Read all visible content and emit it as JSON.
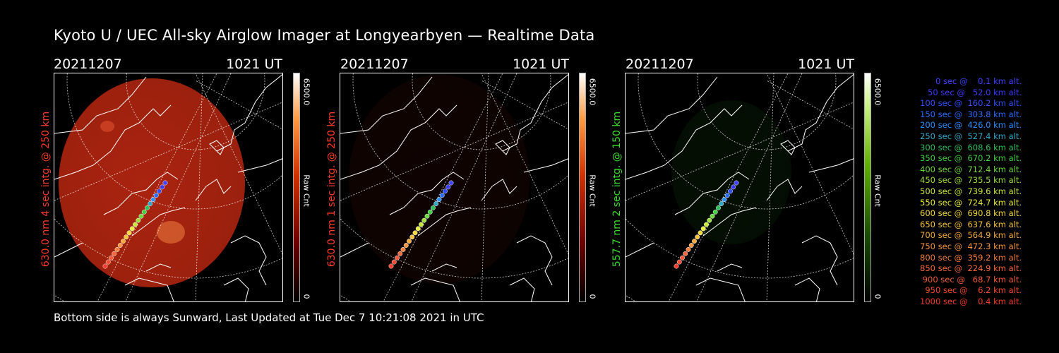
{
  "title": "Kyoto U / UEC All-sky Airglow Imager at Longyearbyen — Realtime Data",
  "footer": "Bottom side is always Sunward, Last Updated at Tue Dec  7 10:21:08 2021 in UTC",
  "panels": [
    {
      "date": "20211207",
      "time": "1021 UT",
      "side_label": "630.0 nm 4 sec intg. @ 250 km",
      "label_color": "#ff3b2a",
      "scale_max": "6500.0",
      "scale_min": "0",
      "scale_unit": "Raw Cnt",
      "sky_color": "#c82a12",
      "sky_level": 0.85
    },
    {
      "date": "20211207",
      "time": "1021 UT",
      "side_label": "630.0 nm 1 sec intg. @ 250 km",
      "label_color": "#ff3b2a",
      "scale_max": "6500.0",
      "scale_min": "0",
      "scale_unit": "Raw Cnt",
      "sky_color": "#3a0c06",
      "sky_level": 0.25
    },
    {
      "date": "20211207",
      "time": "1021 UT",
      "side_label": "557.7 nm 2 sec intg. @ 150 km",
      "label_color": "#3adf2a",
      "scale_max": "6500.0",
      "scale_min": "0",
      "scale_unit": "Raw Cnt",
      "sky_color": "#123a0c",
      "sky_level": 0.25
    }
  ],
  "legend": [
    {
      "text": "   0 sec @    0.1 km alt.",
      "color": "#4040ff"
    },
    {
      "text": "  50 sec @   52.0 km alt.",
      "color": "#3a3aff"
    },
    {
      "text": " 100 sec @  160.2 km alt.",
      "color": "#3050ff"
    },
    {
      "text": " 150 sec @  303.8 km alt.",
      "color": "#2a6cff"
    },
    {
      "text": " 200 sec @  426.0 km alt.",
      "color": "#2a90ff"
    },
    {
      "text": " 250 sec @  527.4 km alt.",
      "color": "#30a8c8"
    },
    {
      "text": " 300 sec @  608.6 km alt.",
      "color": "#2ec05a"
    },
    {
      "text": " 350 sec @  670.2 km alt.",
      "color": "#40d040"
    },
    {
      "text": " 400 sec @  712.4 km alt.",
      "color": "#6ad83a"
    },
    {
      "text": " 450 sec @  735.5 km alt.",
      "color": "#9ce03a"
    },
    {
      "text": " 500 sec @  739.6 km alt.",
      "color": "#c8e83a"
    },
    {
      "text": " 550 sec @  724.7 km alt.",
      "color": "#e8ec3a"
    },
    {
      "text": " 600 sec @  690.8 km alt.",
      "color": "#f5d83a"
    },
    {
      "text": " 650 sec @  637.6 km alt.",
      "color": "#f5c23a"
    },
    {
      "text": " 700 sec @  564.9 km alt.",
      "color": "#f5aa3a"
    },
    {
      "text": " 750 sec @  472.3 km alt.",
      "color": "#f5943a"
    },
    {
      "text": " 800 sec @  359.2 km alt.",
      "color": "#f57e3a"
    },
    {
      "text": " 850 sec @  224.9 km alt.",
      "color": "#f5683a"
    },
    {
      "text": " 900 sec @   68.7 km alt.",
      "color": "#f55a3a"
    },
    {
      "text": " 950 sec @    6.2 km alt.",
      "color": "#f54a30"
    },
    {
      "text": "1000 sec @    0.4 km alt.",
      "color": "#f53a2a"
    }
  ]
}
